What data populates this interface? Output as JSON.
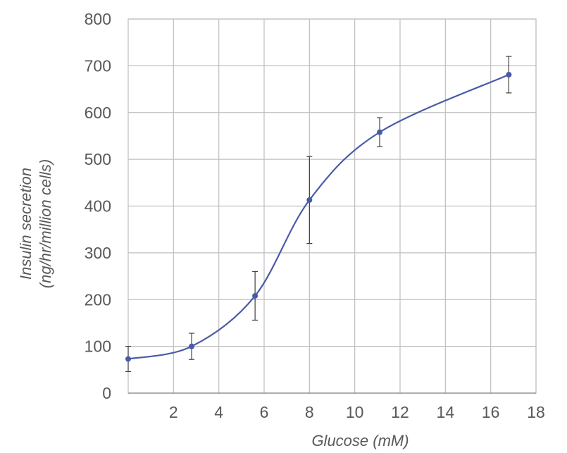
{
  "chart_data": {
    "type": "line",
    "xlabel": "Glucose (mM)",
    "ylabel_line1": "Insulin secretion",
    "ylabel_line2": "(ng/hr/million cells)",
    "xlim": [
      0,
      18
    ],
    "ylim": [
      0,
      800
    ],
    "xticks": [
      2,
      4,
      6,
      8,
      10,
      12,
      14,
      16,
      18
    ],
    "yticks": [
      0,
      100,
      200,
      300,
      400,
      500,
      600,
      700,
      800
    ],
    "grid": true,
    "series": [
      {
        "x": [
          0,
          2.8,
          5.6,
          8,
          11.1,
          16.8
        ],
        "y": [
          73,
          100,
          208,
          413,
          558,
          681
        ],
        "error": [
          27,
          28,
          52,
          93,
          31,
          39
        ],
        "smooth": true
      }
    ],
    "colors": {
      "line": "#4a5ba6",
      "marker": "#4a5ba6",
      "error_bar": "#404040",
      "grid": "#bfbfbf",
      "text": "#595959"
    }
  }
}
